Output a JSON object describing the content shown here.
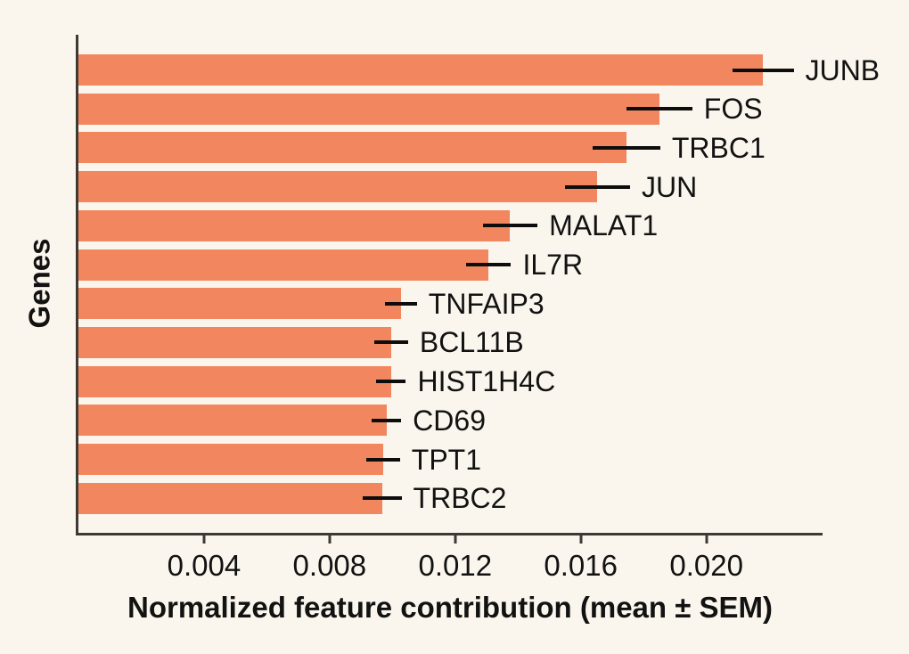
{
  "figure": {
    "background_color": "#FBF6ED",
    "bar_color": "#F1865F",
    "axis_color": "#3E3A33",
    "error_bar_color": "#0D0D0D",
    "text_color": "#121212"
  },
  "chart_data": {
    "type": "bar",
    "orientation": "horizontal",
    "title": "",
    "xlabel": "Normalized feature contribution (mean ± SEM)",
    "ylabel": "Genes",
    "categories": [
      "JUNB",
      "FOS",
      "TRBC1",
      "JUN",
      "MALAT1",
      "IL7R",
      "TNFAIP3",
      "BCL11B",
      "HIST1H4C",
      "CD69",
      "TPT1",
      "TRBC2"
    ],
    "values": [
      0.0218,
      0.0185,
      0.01745,
      0.01653,
      0.01375,
      0.01307,
      0.01027,
      0.00996,
      0.00995,
      0.00981,
      0.0097,
      0.00967
    ],
    "errors": [
      0.00098,
      0.00105,
      0.00108,
      0.00104,
      0.00087,
      0.00071,
      0.00051,
      0.00054,
      0.00048,
      0.00047,
      0.00054,
      0.00062
    ],
    "error_bars": "sem, horizontal, no caps",
    "xlim": [
      0,
      0.0237
    ],
    "xticks": [
      0.004,
      0.008,
      0.012,
      0.016,
      0.02
    ],
    "xtick_labels": [
      "0.004",
      "0.008",
      "0.012",
      "0.016",
      "0.020"
    ],
    "yticks": "none (bars labeled directly right of error bars)",
    "grid": false,
    "legend": "none"
  }
}
